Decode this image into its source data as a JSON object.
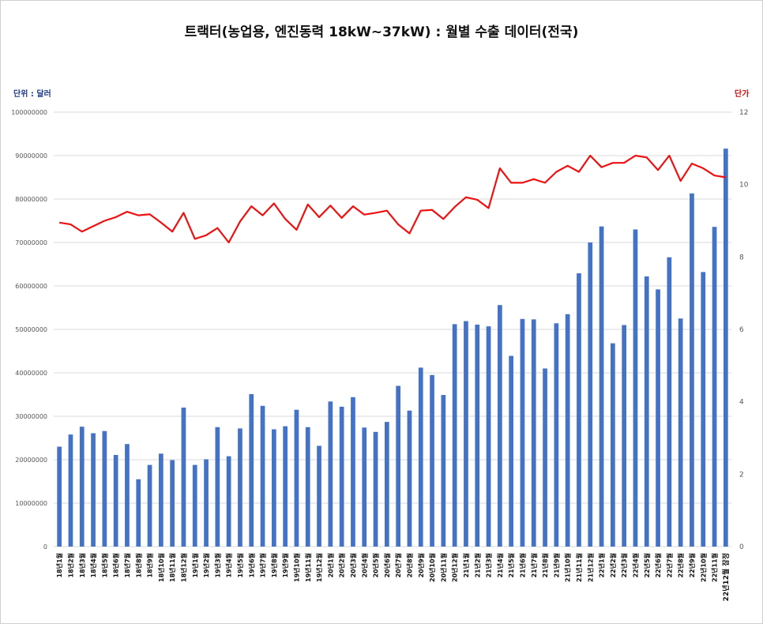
{
  "chart_data": {
    "type": "bar",
    "title": "트랙터(농업용, 엔진동력 18kW~37kW) : 월별 수출 데이터(전국)",
    "ylabel_left": "단위 : 달러",
    "ylabel_right": "단가",
    "ylim_left": [
      0,
      100000000
    ],
    "ylim_right": [
      0,
      12
    ],
    "yticks_left": [
      "0",
      "10000000",
      "20000000",
      "30000000",
      "40000000",
      "50000000",
      "60000000",
      "70000000",
      "80000000",
      "90000000",
      "100000000"
    ],
    "yticks_right": [
      "0",
      "2",
      "4",
      "6",
      "8",
      "10",
      "12"
    ],
    "grid": true,
    "categories": [
      "18년1월",
      "18년2월",
      "18년3월",
      "18년4월",
      "18년5월",
      "18년6월",
      "18년7월",
      "18년8월",
      "18년9월",
      "18년10월",
      "18년11월",
      "18년12월",
      "19년1월",
      "19년2월",
      "19년3월",
      "19년4월",
      "19년5월",
      "19년6월",
      "19년7월",
      "19년8월",
      "19년9월",
      "19년10월",
      "19년11월",
      "19년12월",
      "20년1월",
      "20년2월",
      "20년3월",
      "20년4월",
      "20년5월",
      "20년6월",
      "20년7월",
      "20년8월",
      "20년9월",
      "20년10월",
      "20년11월",
      "20년12월",
      "21년1월",
      "21년2월",
      "21년3월",
      "21년4월",
      "21년5월",
      "21년6월",
      "21년7월",
      "21년8월",
      "21년9월",
      "21년10월",
      "21년11월",
      "21년12월",
      "22년1월",
      "22년2월",
      "22년3월",
      "22년4월",
      "22년5월",
      "22년6월",
      "22년7월",
      "22년8월",
      "22년9월",
      "22년10월",
      "22년11월",
      "22년12월 잠정"
    ],
    "series": [
      {
        "type": "bar",
        "axis": "left",
        "color": "#4472c4",
        "values": [
          23000000,
          25800000,
          27600000,
          26100000,
          26600000,
          21100000,
          23600000,
          15500000,
          18800000,
          21400000,
          19900000,
          32000000,
          18800000,
          20100000,
          27500000,
          20800000,
          27200000,
          35100000,
          32400000,
          27000000,
          27700000,
          31500000,
          27500000,
          23200000,
          33400000,
          32200000,
          34400000,
          27400000,
          26400000,
          28700000,
          37000000,
          31300000,
          41200000,
          39500000,
          34900000,
          51200000,
          51900000,
          51100000,
          50700000,
          55600000,
          43900000,
          52400000,
          52300000,
          41000000,
          51400000,
          53500000,
          62900000,
          70000000,
          73700000,
          46800000,
          51000000,
          73000000,
          62200000,
          59200000,
          66600000,
          52500000,
          81300000,
          63200000,
          73600000,
          91600000
        ]
      },
      {
        "type": "line",
        "axis": "right",
        "color": "#ee1111",
        "values": [
          8.95,
          8.9,
          8.7,
          8.85,
          9.0,
          9.1,
          9.25,
          9.15,
          9.18,
          8.95,
          8.7,
          9.22,
          8.5,
          8.6,
          8.8,
          8.4,
          8.98,
          9.4,
          9.15,
          9.48,
          9.05,
          8.75,
          9.45,
          9.1,
          9.42,
          9.08,
          9.4,
          9.17,
          9.22,
          9.28,
          8.9,
          8.65,
          9.28,
          9.3,
          9.05,
          9.38,
          9.65,
          9.58,
          9.35,
          10.45,
          10.05,
          10.05,
          10.15,
          10.05,
          10.35,
          10.52,
          10.35,
          10.8,
          10.48,
          10.6,
          10.6,
          10.8,
          10.75,
          10.4,
          10.8,
          10.1,
          10.58,
          10.45,
          10.25,
          10.2
        ]
      }
    ]
  }
}
